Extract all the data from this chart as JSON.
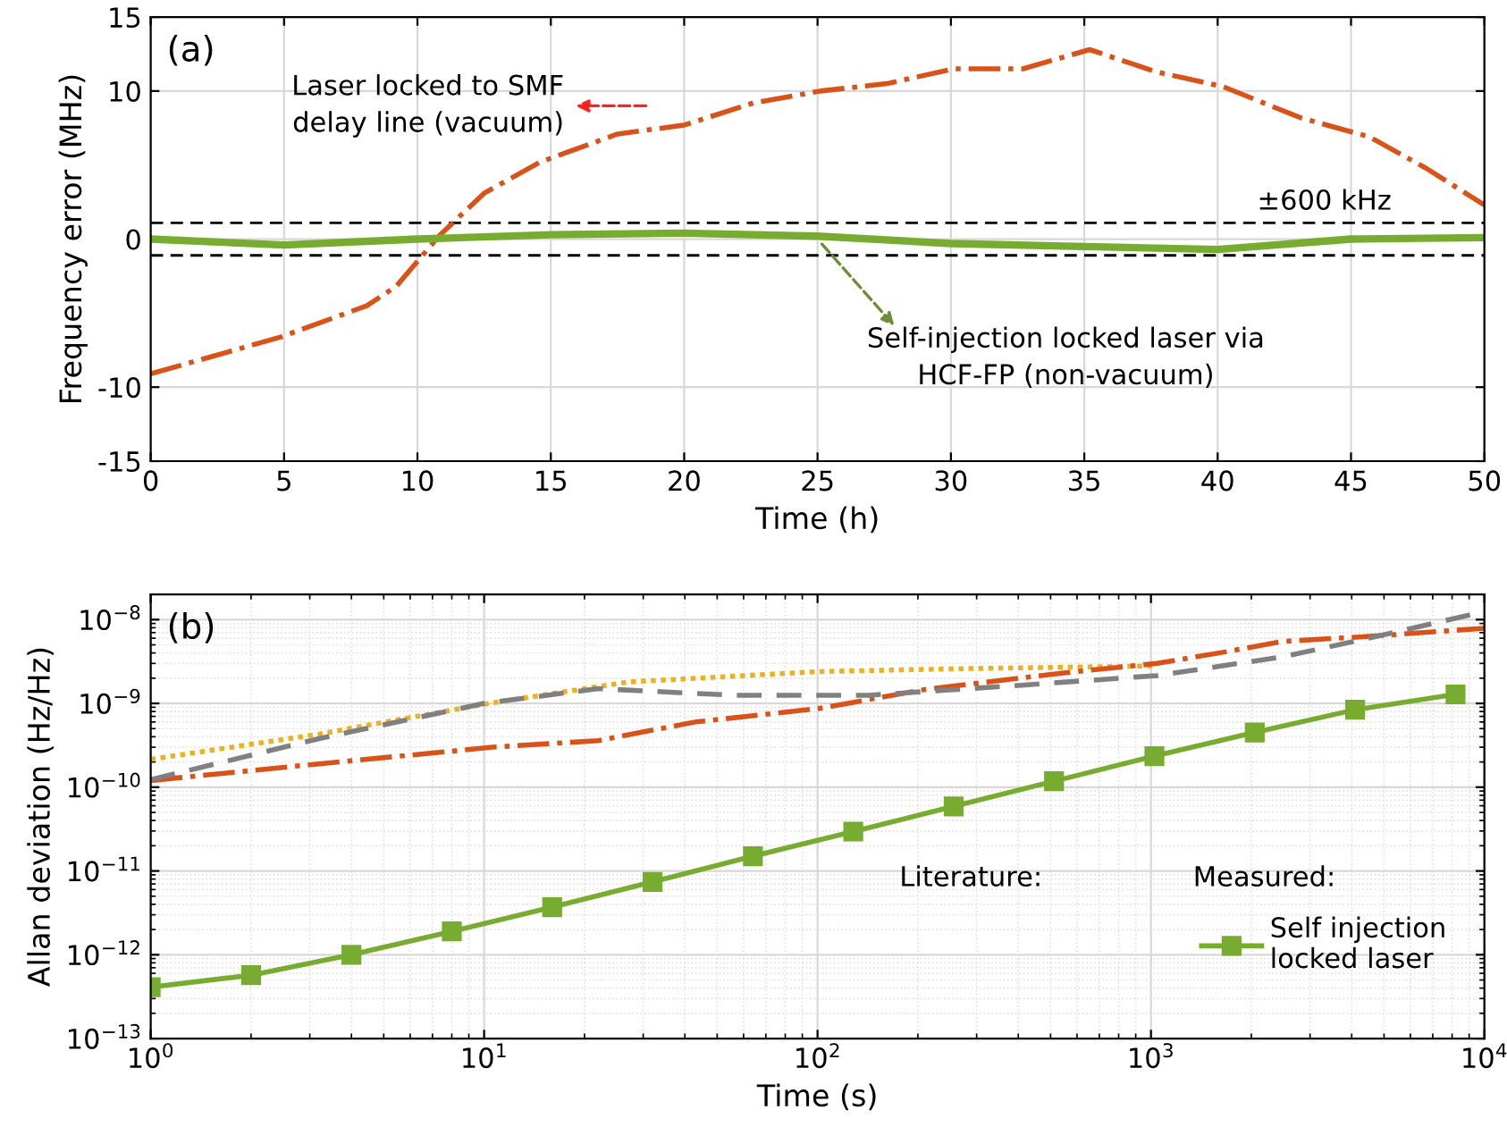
{
  "chart_data": [
    {
      "type": "line",
      "title": "(a)",
      "xlabel": "Time (h)",
      "ylabel": "Frequency error (MHz)",
      "xlim": [
        0,
        50
      ],
      "ylim": [
        -15,
        15
      ],
      "xticks": [
        0,
        5,
        10,
        15,
        20,
        25,
        30,
        35,
        40,
        45,
        50
      ],
      "yticks": [
        -15,
        -10,
        0,
        10,
        15
      ],
      "grid": true,
      "series": [
        {
          "color": "#d95319",
          "line_style": "dashdot",
          "x": [
            0,
            4.9,
            8.1,
            9.2,
            10.8,
            12.5,
            14.6,
            17.5,
            20,
            22.6,
            25.1,
            27.6,
            30.1,
            32.7,
            35.2,
            37.7,
            40.2,
            43.1,
            45.7,
            47.8,
            50
          ],
          "values": [
            -9.1,
            -6.6,
            -4.5,
            -3.2,
            0.2,
            3.1,
            5.2,
            7.1,
            7.7,
            9.2,
            10,
            10.5,
            11.5,
            11.5,
            12.8,
            11.3,
            10.3,
            8.2,
            6.9,
            4.8,
            2.3
          ]
        },
        {
          "color": "#77ac30",
          "line_style": "solid",
          "x": [
            0,
            5,
            10,
            15,
            20,
            25,
            30,
            35,
            40,
            45,
            50
          ],
          "values": [
            0,
            -0.4,
            0,
            0.3,
            0.4,
            0.2,
            -0.3,
            -0.5,
            -0.7,
            0,
            0.1
          ]
        }
      ],
      "ref_lines": [
        {
          "axis": "y",
          "value": 1.1,
          "label": "±600 kHz",
          "color": "#000000",
          "line_style": "dashed"
        },
        {
          "axis": "y",
          "value": -1.1,
          "color": "#000000",
          "line_style": "dashed"
        }
      ],
      "annotations": [
        "Laser locked to SMF\ndelay line (vacuum)",
        {
          "text": "Self-injection locked laser via\nHCF-FP (non-vacuum)",
          "x": 25,
          "y": 0
        }
      ]
    },
    {
      "type": "line",
      "title": "(b)",
      "xlabel": "Time (s)",
      "ylabel": "Allan deviation (Hz/Hz)",
      "log": "xy",
      "xlim": [
        1,
        10000
      ],
      "ylim": [
        1e-13,
        2e-08
      ],
      "xticks": [
        {
          "value": 1,
          "label": "10$^{0}$"
        },
        {
          "value": 10,
          "label": "10$^{1}$"
        },
        {
          "value": 100,
          "label": "10$^{2}$"
        },
        {
          "value": 1000,
          "label": "10$^{3}$"
        },
        {
          "value": 10000,
          "label": "10$^{4}$"
        }
      ],
      "yticks": [
        {
          "value": 1e-13,
          "label": "10$^{−13}$"
        },
        {
          "value": 1e-12,
          "label": "10$^{−12}$"
        },
        {
          "value": 1e-11,
          "label": "10$^{−11}$"
        },
        {
          "value": 1e-10,
          "label": "10$^{−10}$"
        },
        {
          "value": 1e-09,
          "label": "10$^{−9}$"
        },
        {
          "value": 1e-08,
          "label": "10$^{−8}$"
        }
      ],
      "grid": true,
      "legend": "bottom right",
      "series": [
        {
          "color": "#edb120",
          "line_style": "dotted",
          "x": [
            1,
            3.2,
            10,
            27,
            101,
            275,
            1043
          ],
          "values": [
            2.15e-10,
            4.3e-10,
            9.8e-10,
            1.8e-09,
            2.4e-09,
            2.6e-09,
            2.8e-09
          ]
        },
        {
          "color": "#d95319",
          "line_style": "dashdot",
          "x": [
            1,
            3.2,
            10.6,
            22,
            43,
            101,
            211,
            540,
            1043,
            1660,
            2490,
            4500,
            10000
          ],
          "values": [
            1.2e-10,
            1.9e-10,
            3e-10,
            3.6e-10,
            6e-10,
            8.7e-10,
            1.47e-09,
            2.3e-09,
            3e-09,
            4.1e-09,
            5.5e-09,
            6.3e-09,
            7.9e-09
          ]
        },
        {
          "color": "#808080",
          "line_style": "dashed",
          "x": [
            1,
            3.2,
            10,
            22,
            56,
            142,
            410,
            1043,
            2490,
            4500,
            10000
          ],
          "values": [
            1.23e-10,
            3.8e-10,
            1e-09,
            1.5e-09,
            1.25e-09,
            1.25e-09,
            1.65e-09,
            2.15e-09,
            3.6e-09,
            6e-09,
            1.25e-08
          ]
        },
        {
          "name": "Self injection\nlocked laser",
          "color": "#77ac30",
          "line_style": "solid",
          "marker": "square",
          "x": [
            1,
            2,
            4,
            8,
            16,
            32,
            64,
            128,
            256,
            512,
            1024,
            2048,
            4096,
            8192
          ],
          "values": [
            4.1e-13,
            5.7e-13,
            1e-12,
            1.9e-12,
            3.7e-12,
            7.4e-12,
            1.5e-11,
            2.95e-11,
            5.9e-11,
            1.18e-10,
            2.35e-10,
            4.5e-10,
            8.4e-10,
            1.28e-09
          ]
        }
      ],
      "annotations": [
        "Literature:",
        "Measured:"
      ]
    }
  ]
}
